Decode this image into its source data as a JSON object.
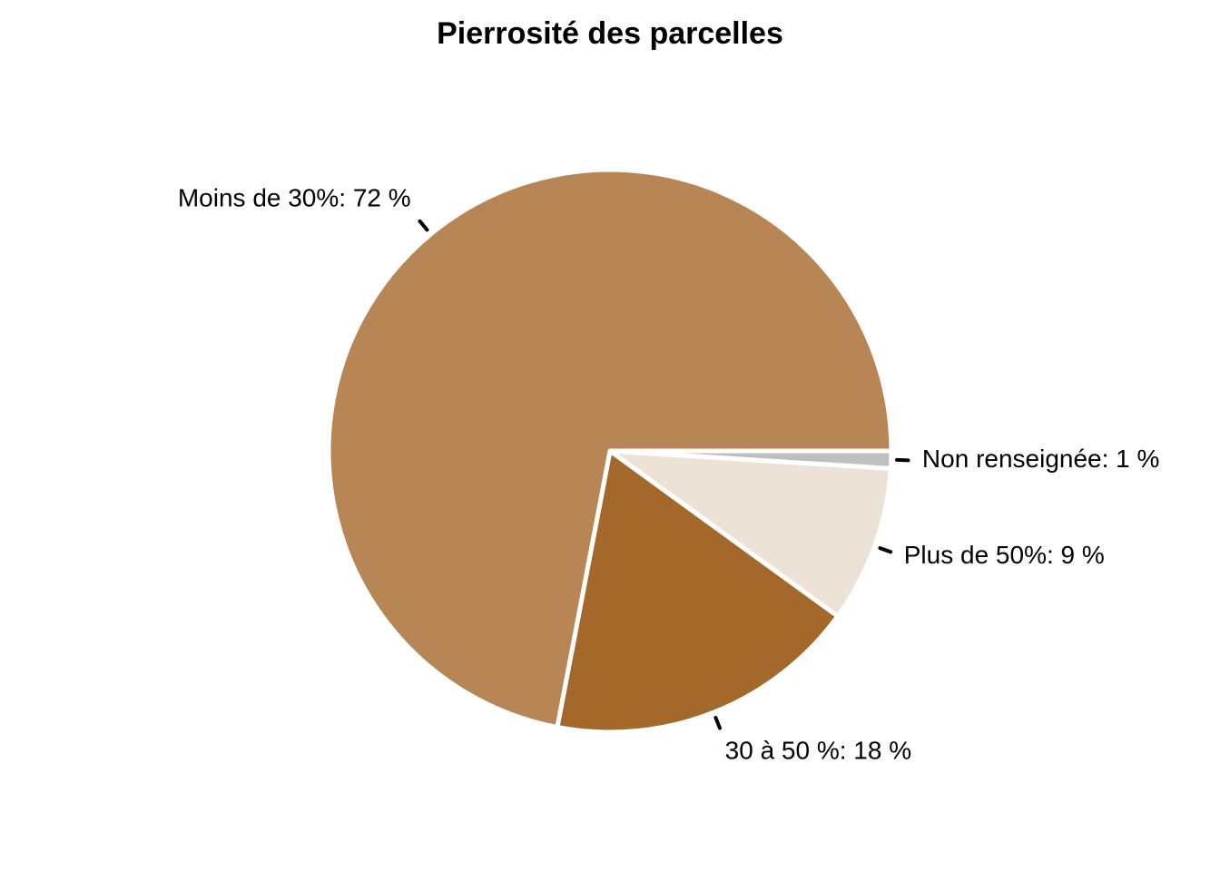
{
  "chart_data": {
    "type": "pie",
    "title": "Pierrosité des parcelles",
    "start_angle_deg": 0,
    "direction": "clockwise",
    "slices": [
      {
        "category": "Non renseignée",
        "percent": 1,
        "label": "Non renseignée: 1 %",
        "color": "#BFBFBF"
      },
      {
        "category": "Plus de 50%",
        "percent": 9,
        "label": "Plus de 50%: 9 %",
        "color": "#EDE2D6"
      },
      {
        "category": "30 à 50 %",
        "percent": 18,
        "label": "30 à 50 %: 18 %",
        "color": "#A4682A"
      },
      {
        "category": "Moins de 30%",
        "percent": 72,
        "label": "Moins de 30%: 72 %",
        "color": "#B88655"
      }
    ]
  }
}
